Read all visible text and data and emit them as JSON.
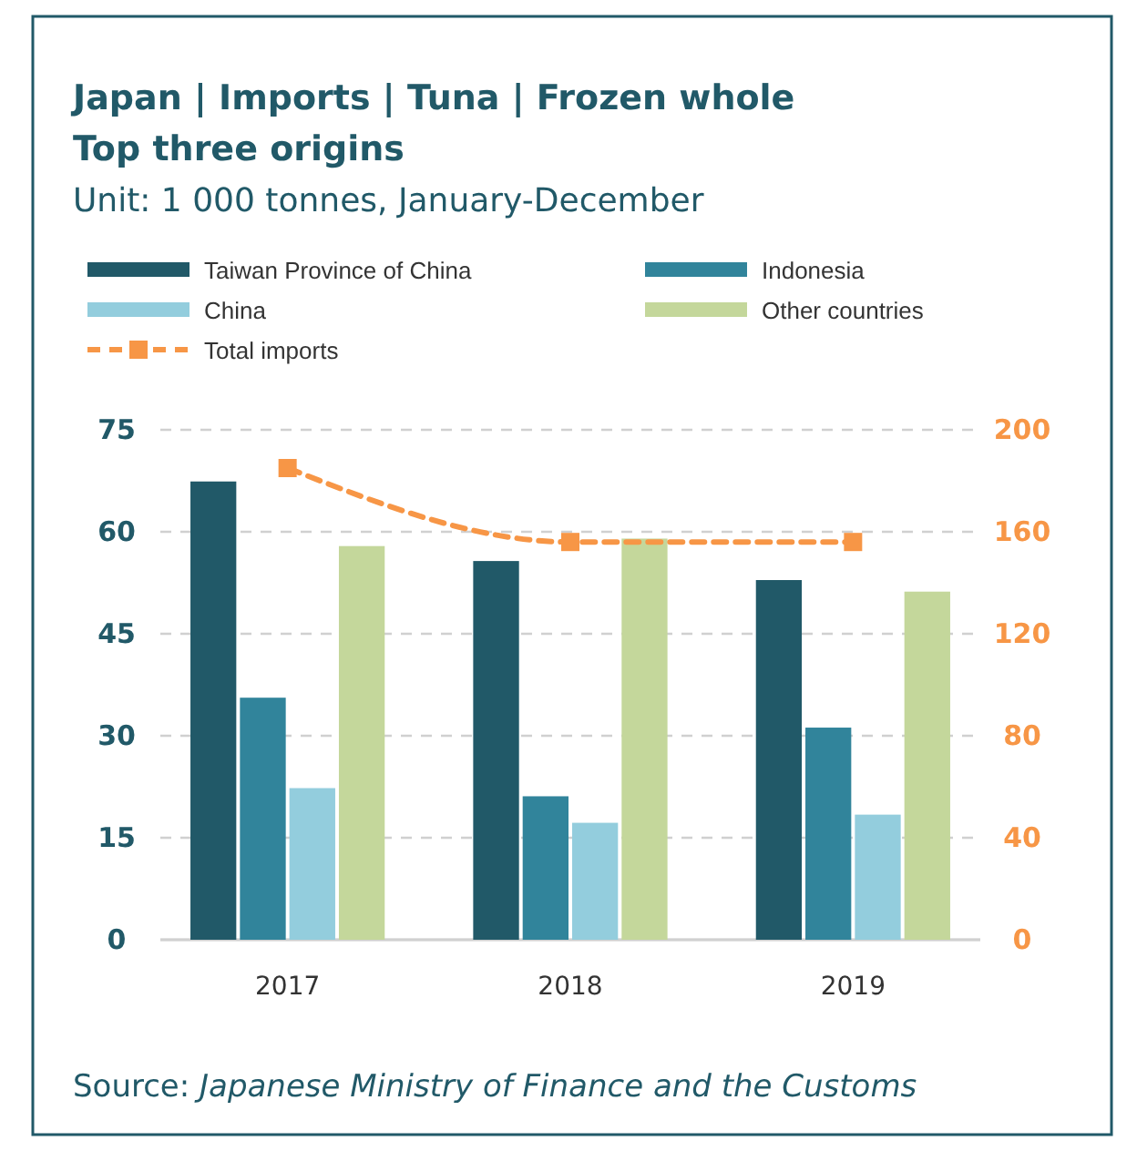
{
  "chart_data": {
    "type": "bar",
    "title": "Japan | Imports | Tuna | Frozen whole",
    "subtitle": "Top three origins",
    "categories": [
      "2017",
      "2018",
      "2019"
    ],
    "series": [
      {
        "name": "Taiwan Province of China",
        "color": "#215968",
        "values": [
          67.4,
          55.7,
          52.9
        ]
      },
      {
        "name": "Indonesia",
        "color": "#31849b",
        "values": [
          35.6,
          21.1,
          31.2
        ]
      },
      {
        "name": "China",
        "color": "#93cddd",
        "values": [
          22.3,
          17.2,
          18.4
        ]
      },
      {
        "name": "Other countries",
        "color": "#c4d79b",
        "values": [
          57.9,
          59.0,
          51.2
        ]
      },
      {
        "name": "Total imports",
        "type": "line",
        "axis": "y2",
        "color": "#f79646",
        "marker": "square",
        "line_style": "dashed",
        "values": [
          185,
          156,
          156
        ]
      }
    ],
    "ylim": [
      0,
      75
    ],
    "yticks": [
      0,
      15,
      30,
      45,
      60,
      75
    ],
    "y2lim": [
      0,
      200
    ],
    "y2ticks": [
      0,
      40,
      80,
      120,
      160,
      200
    ],
    "grid": "y",
    "legend": "top",
    "annotations": [
      "Unit: 1 000 tonnes, January-December",
      "Source: Japanese Ministry of Finance and the Customs"
    ]
  }
}
